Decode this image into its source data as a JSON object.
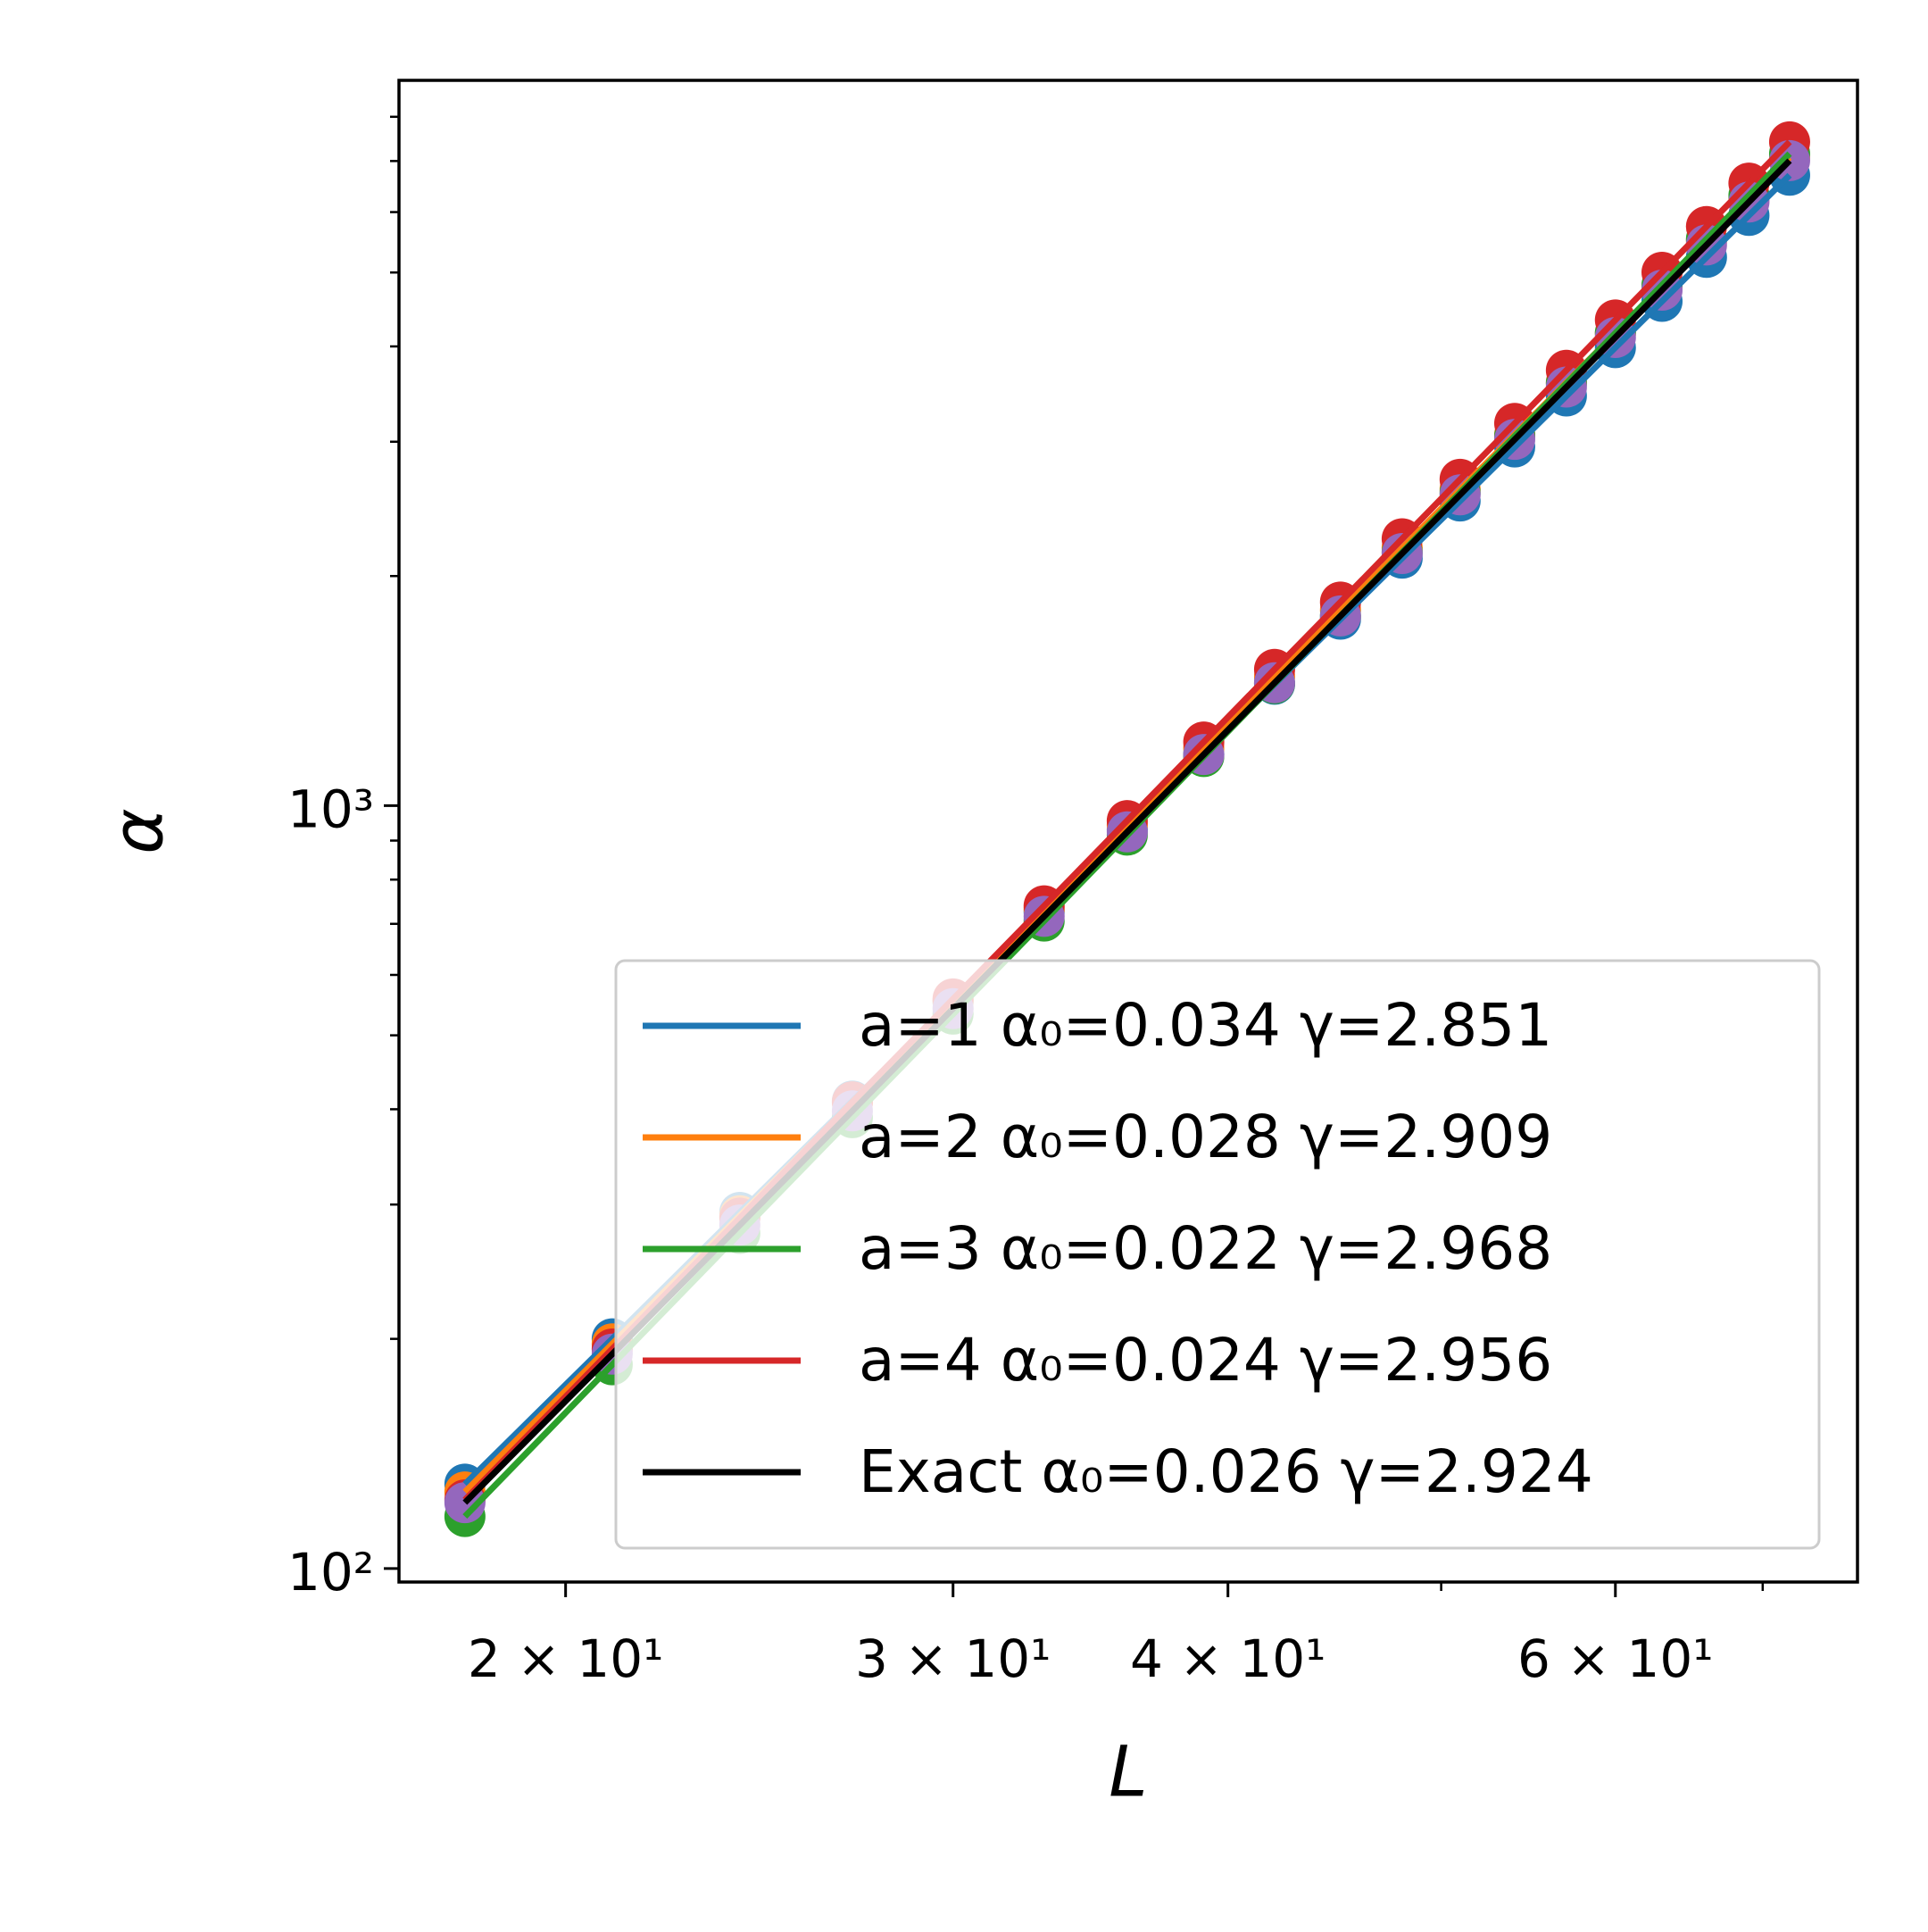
{
  "chart_data": {
    "type": "scatter",
    "xlabel": "L",
    "ylabel": "α",
    "x": [
      18,
      21,
      24,
      27,
      30,
      33,
      36,
      39,
      42,
      45,
      48,
      51,
      54,
      57,
      60,
      63,
      66,
      69,
      72
    ],
    "log_x": true,
    "log_y": true,
    "legend": "lower right",
    "xlim": [
      16.8,
      77.3
    ],
    "ylim": [
      96,
      8930
    ],
    "xticks": [
      {
        "value": 20,
        "label": "2 × 10¹"
      },
      {
        "value": 30,
        "label": "3 × 10¹"
      },
      {
        "value": 40,
        "label": "4 × 10¹"
      },
      {
        "value": 60,
        "label": "6 × 10¹"
      }
    ],
    "xminorticks": [
      50,
      70
    ],
    "yticks": [
      {
        "value": 100,
        "label": "10²"
      },
      {
        "value": 1000,
        "label": "10³"
      }
    ],
    "yminorticks": [
      200,
      300,
      400,
      500,
      600,
      700,
      800,
      900,
      2000,
      3000,
      4000,
      5000,
      6000,
      7000,
      8000
    ],
    "series": [
      {
        "name": "a=1 α₀=0.034 γ=2.851",
        "color": "#1f77b4",
        "marker_color": "#1f77b4",
        "values": [
          129,
          200,
          293,
          410,
          553,
          726,
          930,
          1168,
          1443,
          1756,
          2111,
          2509,
          2953,
          3444,
          3986,
          4583,
          5234,
          5940,
          6707
        ]
      },
      {
        "name": "a=2 α₀=0.028 γ=2.909",
        "color": "#ff7f0e",
        "marker_color": "#ff7f0e",
        "values": [
          126,
          197,
          290,
          408,
          555,
          732,
          943,
          1190,
          1476,
          1804,
          2177,
          2597,
          3065,
          3588,
          4163,
          4800,
          5497,
          6255,
          7077
        ]
      },
      {
        "name": "a=3 α₀=0.022 γ=2.968",
        "color": "#2ca02c",
        "marker_color": "#2ca02c",
        "values": [
          117,
          185,
          275,
          390,
          533,
          706,
          915,
          1160,
          1446,
          1774,
          2149,
          2573,
          3052,
          3578,
          4165,
          4815,
          5530,
          6310,
          7157
        ]
      },
      {
        "name": "a=4 α₀=0.024 γ=2.956",
        "color": "#d62728",
        "marker_color": "#d62728",
        "values": [
          123,
          194,
          288,
          409,
          558,
          739,
          956,
          1212,
          1509,
          1849,
          2238,
          2678,
          3171,
          3722,
          4332,
          5003,
          5743,
          6547,
          7417
        ]
      },
      {
        "name": "Exact α₀=0.026 γ=2.924",
        "color": "#000000",
        "marker_color": "#9467bd",
        "values": [
          122,
          191,
          282,
          398,
          542,
          716,
          924,
          1167,
          1449,
          1773,
          2141,
          2556,
          3021,
          3538,
          4110,
          4741,
          5433,
          6186,
          7008
        ]
      }
    ]
  }
}
